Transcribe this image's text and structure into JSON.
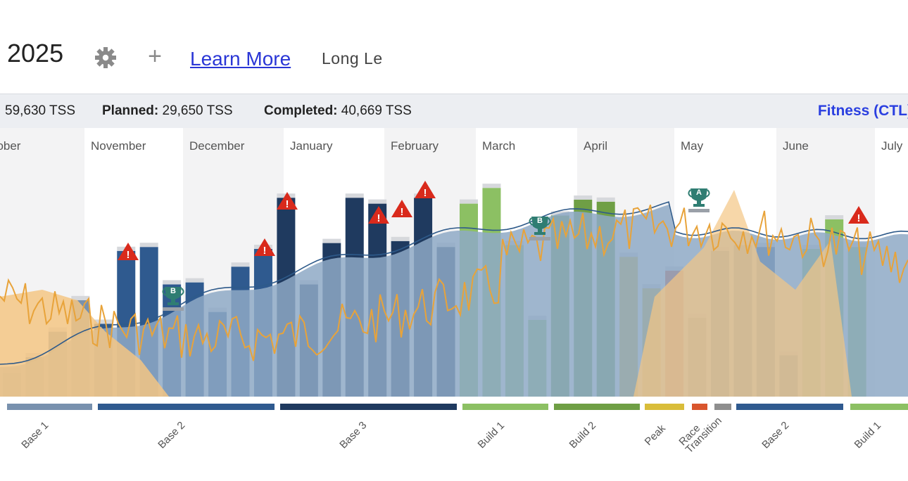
{
  "header": {
    "year": "2025",
    "learn_more": "Learn More",
    "user_name": "Long Le",
    "settings_icon": "gear-icon",
    "add_icon": "plus-icon"
  },
  "stats": {
    "total_value": "59,630 TSS",
    "planned_label": "Planned:",
    "planned_value": "29,650 TSS",
    "completed_label": "Completed:",
    "completed_value": "40,669 TSS",
    "fitness_toggle": "Fitness (CTL)"
  },
  "colors": {
    "base1": "#7891ae",
    "base2": "#2f5a8f",
    "base3": "#1f3a5f",
    "build1": "#8cc063",
    "build2": "#6f9f45",
    "peak": "#d9bd3a",
    "race": "#d9552d",
    "transition": "#8e8e8e",
    "planned": "#d6d8dc",
    "ctl_area": "#8ea9c6",
    "form_area": "#f3c684",
    "tsb_line": "#e8a33a",
    "warning": "#d92a1c",
    "trophy": "#2f7d72",
    "link": "#2a36d6"
  },
  "chart_data": {
    "type": "bar",
    "months": [
      "October",
      "November",
      "December",
      "January",
      "February",
      "March",
      "April",
      "May",
      "June",
      "July"
    ],
    "weekly_tss": {
      "phases": [
        "Base 1",
        "Base 1",
        "Base 1",
        "Base 1",
        "Base 2",
        "Base 2",
        "Base 2",
        "Base 2",
        "Base 2",
        "Base 2",
        "Base 2",
        "Base 2",
        "Base 3",
        "Base 3",
        "Base 3",
        "Base 3",
        "Base 3",
        "Base 3",
        "Base 3",
        "Base 3",
        "Build 1",
        "Build 1",
        "Build 1",
        "Build 1",
        "Build 2",
        "Build 2",
        "Build 2",
        "Peak",
        "Peak",
        "Race",
        "Transition",
        "Base 2",
        "Base 2",
        "Base 2",
        "Base 2",
        "Build 1",
        "Build 1",
        "Build 1"
      ],
      "completed": [
        60,
        100,
        165,
        245,
        185,
        370,
        380,
        285,
        290,
        215,
        330,
        375,
        505,
        285,
        390,
        505,
        490,
        395,
        505,
        380,
        490,
        530,
        385,
        195,
        460,
        500,
        495,
        355,
        275,
        320,
        200,
        370,
        385,
        380,
        105,
        375,
        450,
        380
      ],
      "planned": [
        0,
        0,
        0,
        0,
        0,
        0,
        0,
        0,
        0,
        0,
        0,
        0,
        0,
        0,
        0,
        0,
        0,
        0,
        0,
        0,
        0,
        0,
        0,
        0,
        0,
        0,
        0,
        0,
        0,
        0,
        0,
        0,
        0,
        0,
        0,
        0,
        0,
        0
      ]
    },
    "phase_bands": [
      "Base 1",
      "Base 2",
      "Base 3",
      "Build 1",
      "Build 2",
      "Peak",
      "Race",
      "Transition",
      "Base 2",
      "Build 1"
    ],
    "events": [
      {
        "type": "warning",
        "icon": "warning-icon"
      },
      {
        "type": "warning",
        "icon": "warning-icon"
      },
      {
        "type": "warning",
        "icon": "warning-icon"
      },
      {
        "type": "warning",
        "icon": "warning-icon"
      },
      {
        "type": "warning",
        "icon": "warning-icon"
      },
      {
        "type": "warning",
        "icon": "warning-icon"
      },
      {
        "type": "warning",
        "icon": "warning-icon"
      },
      {
        "type": "race",
        "priority": "B",
        "icon": "trophy-icon"
      },
      {
        "type": "race",
        "priority": "B",
        "icon": "trophy-icon"
      },
      {
        "type": "race",
        "priority": "A",
        "icon": "trophy-icon"
      }
    ]
  }
}
